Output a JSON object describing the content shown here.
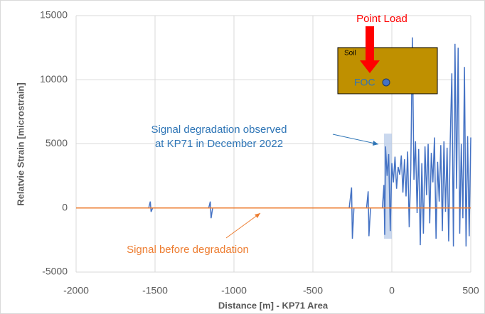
{
  "chart_data": {
    "type": "line",
    "x_label": "Distance [m] - KP71 Area",
    "y_label": "Relatvie Strain [microstrain]",
    "xlim": [
      -2000,
      500
    ],
    "xticks": [
      -2000,
      -1500,
      -1000,
      -500,
      0,
      500
    ],
    "ylim": [
      -5000,
      15000
    ],
    "yticks": [
      -5000,
      0,
      5000,
      10000,
      15000
    ],
    "grid": true,
    "series": [
      {
        "name": "Signal degradation observed",
        "color": "#4472c4",
        "x": [
          -2000,
          -1540,
          -1530,
          -1525,
          -1515,
          -1160,
          -1150,
          -1145,
          -1135,
          -270,
          -255,
          -250,
          -240,
          -160,
          -150,
          -145,
          -135,
          -60,
          -50,
          -45,
          -40,
          -30,
          -20,
          -10,
          0,
          10,
          20,
          30,
          40,
          50,
          60,
          70,
          80,
          90,
          100,
          110,
          120,
          130,
          140,
          150,
          160,
          170,
          180,
          190,
          200,
          210,
          220,
          230,
          240,
          250,
          260,
          270,
          280,
          290,
          300,
          310,
          320,
          330,
          340,
          350,
          360,
          370,
          380,
          390,
          400,
          410,
          420,
          430,
          440,
          450,
          460,
          470,
          480,
          490,
          500
        ],
        "values": [
          0,
          0,
          500,
          -300,
          0,
          0,
          500,
          -800,
          0,
          0,
          1600,
          -2400,
          0,
          0,
          1300,
          -2200,
          0,
          0,
          1800,
          -2100,
          4800,
          2500,
          4200,
          -1800,
          3500,
          2000,
          4000,
          1500,
          3200,
          2600,
          4100,
          1200,
          3800,
          900,
          4400,
          -1500,
          3000,
          13300,
          2200,
          5200,
          -400,
          4600,
          -2900,
          3500,
          -2000,
          4800,
          1000,
          5000,
          -1200,
          4300,
          2000,
          5500,
          -2400,
          3600,
          500,
          4900,
          -1800,
          5200,
          -300,
          4700,
          -2600,
          5300,
          10500,
          -3000,
          12800,
          1500,
          12500,
          -2000,
          5000,
          -800,
          11000,
          -3000,
          5600,
          -2200,
          5500
        ]
      },
      {
        "name": "Signal before degradation",
        "color": "#ed7d31",
        "x": [
          -2000,
          500
        ],
        "values": [
          0,
          0
        ]
      }
    ],
    "highlight": {
      "xlim": [
        -50,
        0
      ],
      "ylim": [
        -2400,
        5800
      ],
      "color": "#b4c7e7"
    },
    "annotations": [
      {
        "lines": [
          "Signal degradation observed",
          "at KP71 in December 2022"
        ],
        "color": "#2e75b6"
      },
      {
        "lines": [
          "Signal before degradation"
        ],
        "color": "#ed7d31"
      }
    ],
    "inset": {
      "soil": "Soil",
      "foc": "FOC",
      "load": "Point Load"
    }
  }
}
